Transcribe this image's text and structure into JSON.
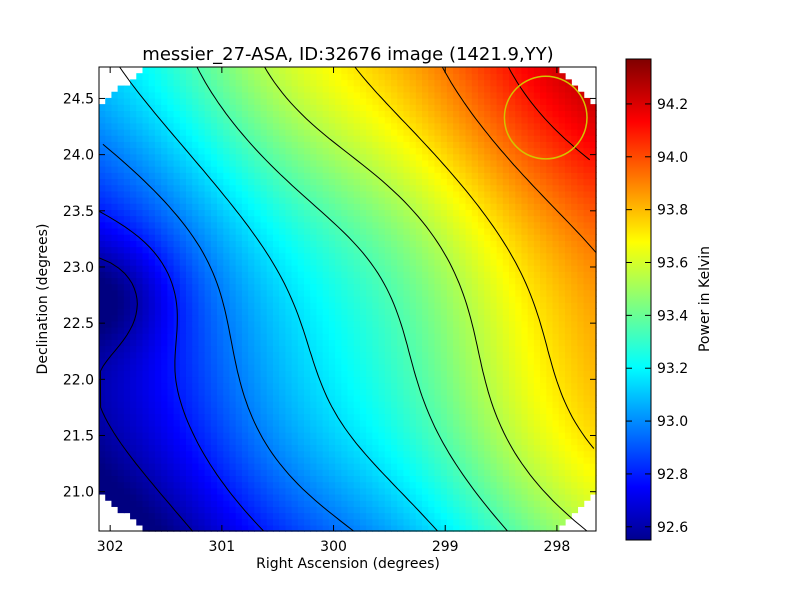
{
  "chart_data": {
    "type": "heatmap",
    "title": "messier_27-ASA, ID:32676 image (1421.9,YY)",
    "xlabel": "Right Ascension (degrees)",
    "ylabel": "Declination (degrees)",
    "x_ticks": [
      "302",
      "301",
      "300",
      "299",
      "298"
    ],
    "x_tick_values": [
      302,
      301,
      300,
      299,
      298
    ],
    "y_ticks": [
      "21.0",
      "21.5",
      "22.0",
      "22.5",
      "23.0",
      "23.5",
      "24.0",
      "24.5"
    ],
    "y_tick_values": [
      21.0,
      21.5,
      22.0,
      22.5,
      23.0,
      23.5,
      24.0,
      24.5
    ],
    "xlim": [
      302.1,
      297.65
    ],
    "ylim": [
      20.65,
      24.78
    ],
    "x_reversed": true,
    "colorbar": {
      "label": "Power in Kelvin",
      "range": [
        92.55,
        94.37
      ],
      "ticks": [
        "92.6",
        "92.8",
        "93.0",
        "93.2",
        "93.4",
        "93.6",
        "93.8",
        "94.0",
        "94.2"
      ],
      "tick_values": [
        92.6,
        92.8,
        93.0,
        93.2,
        93.4,
        93.6,
        93.8,
        94.0,
        94.2
      ],
      "colormap": "jet"
    },
    "value_range": [
      92.55,
      94.37
    ],
    "contour_levels": [
      92.63,
      92.82,
      93.0,
      93.18,
      93.37,
      93.55,
      93.73,
      93.92,
      94.1,
      94.29
    ],
    "beam_marker": {
      "ra": 298.1,
      "dec": 24.33,
      "radius_deg": 0.37,
      "color": "#d4c400"
    },
    "grid": false,
    "legend": "none"
  }
}
